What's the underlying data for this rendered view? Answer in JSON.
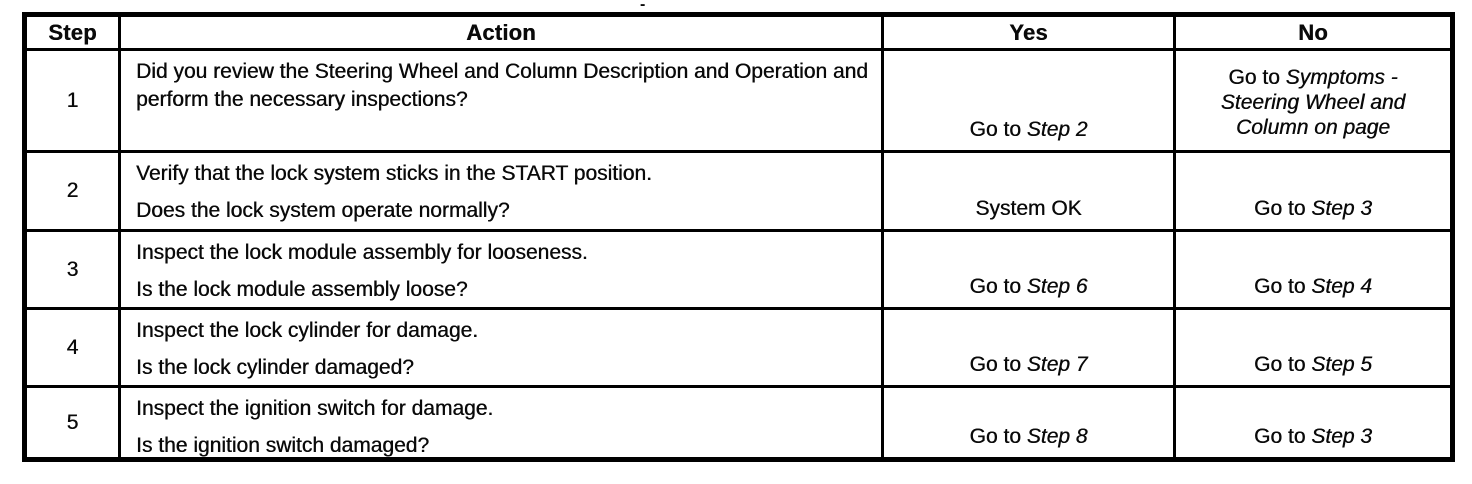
{
  "colors": {
    "ink": "#0a0a0a",
    "paper": "#ffffff"
  },
  "artifacts": {
    "top_dash": "-"
  },
  "table": {
    "headers": {
      "step": "Step",
      "action": "Action",
      "yes": "Yes",
      "no": "No"
    },
    "rows": [
      {
        "step": "1",
        "action": [
          "Did you review the Steering Wheel and Column Description and Operation and perform the necessary inspections?"
        ],
        "yes": {
          "lines": [
            {
              "pre": "Go to ",
              "it": "Step 2"
            }
          ]
        },
        "no": {
          "lines": [
            {
              "pre": "Go to ",
              "it": "Symptoms -"
            },
            {
              "pre": "",
              "it": "Steering Wheel and"
            },
            {
              "pre": "",
              "it": "Column on page"
            }
          ]
        }
      },
      {
        "step": "2",
        "action": [
          "Verify that the lock system sticks in the START position.",
          "Does the lock system operate normally?"
        ],
        "yes": {
          "lines": [
            {
              "pre": "System OK",
              "it": ""
            }
          ]
        },
        "no": {
          "lines": [
            {
              "pre": "Go to ",
              "it": "Step 3"
            }
          ]
        }
      },
      {
        "step": "3",
        "action": [
          "Inspect the lock module assembly for looseness.",
          "Is the lock module assembly loose?"
        ],
        "yes": {
          "lines": [
            {
              "pre": "Go to ",
              "it": "Step 6"
            }
          ]
        },
        "no": {
          "lines": [
            {
              "pre": "Go to ",
              "it": "Step 4"
            }
          ]
        }
      },
      {
        "step": "4",
        "action": [
          "Inspect the lock cylinder for damage.",
          "Is the lock cylinder damaged?"
        ],
        "yes": {
          "lines": [
            {
              "pre": "Go to ",
              "it": "Step 7"
            }
          ]
        },
        "no": {
          "lines": [
            {
              "pre": "Go to ",
              "it": "Step 5"
            }
          ]
        }
      },
      {
        "step": "5",
        "action": [
          "Inspect the ignition switch for damage.",
          "Is the ignition switch damaged?"
        ],
        "yes": {
          "lines": [
            {
              "pre": "Go to ",
              "it": "Step 8"
            }
          ]
        },
        "no": {
          "lines": [
            {
              "pre": "Go to ",
              "it": "Step 3"
            }
          ]
        }
      }
    ]
  }
}
